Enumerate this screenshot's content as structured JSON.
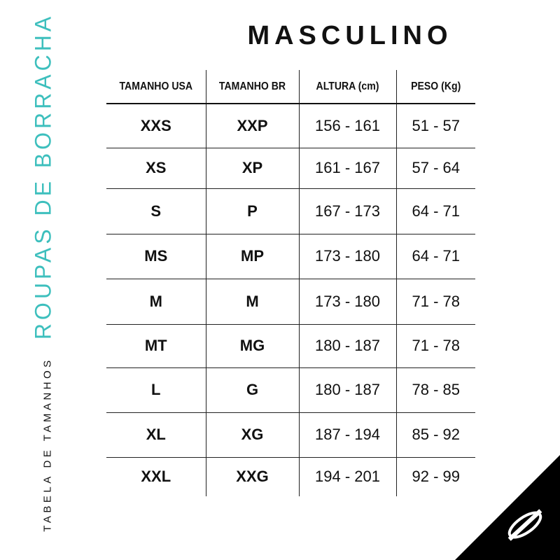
{
  "title": "MASCULINO",
  "side_title": "ROUPAS DE BORRACHA",
  "side_subtitle": "TABELA DE TAMANHOS",
  "accent_color": "#3dbfbd",
  "table": {
    "headers": [
      "TAMANHO USA",
      "TAMANHO BR",
      "ALTURA (cm)",
      "PESO (Kg)"
    ],
    "rows": [
      [
        "XXS",
        "XXP",
        "156 - 161",
        "51 - 57"
      ],
      [
        "XS",
        "XP",
        "161 - 167",
        "57 - 64"
      ],
      [
        "S",
        "P",
        "167 - 173",
        "64 - 71"
      ],
      [
        "MS",
        "MP",
        "173 - 180",
        "64 - 71"
      ],
      [
        "M",
        "M",
        "173 - 180",
        "71 - 78"
      ],
      [
        "MT",
        "MG",
        "180 - 187",
        "71 - 78"
      ],
      [
        "L",
        "G",
        "180 - 187",
        "78 - 85"
      ],
      [
        "XL",
        "XG",
        "187 - 194",
        "85 - 92"
      ],
      [
        "XXL",
        "XXG",
        "194 - 201",
        "92 - 99"
      ]
    ]
  },
  "logo": "brand-logo-icon"
}
